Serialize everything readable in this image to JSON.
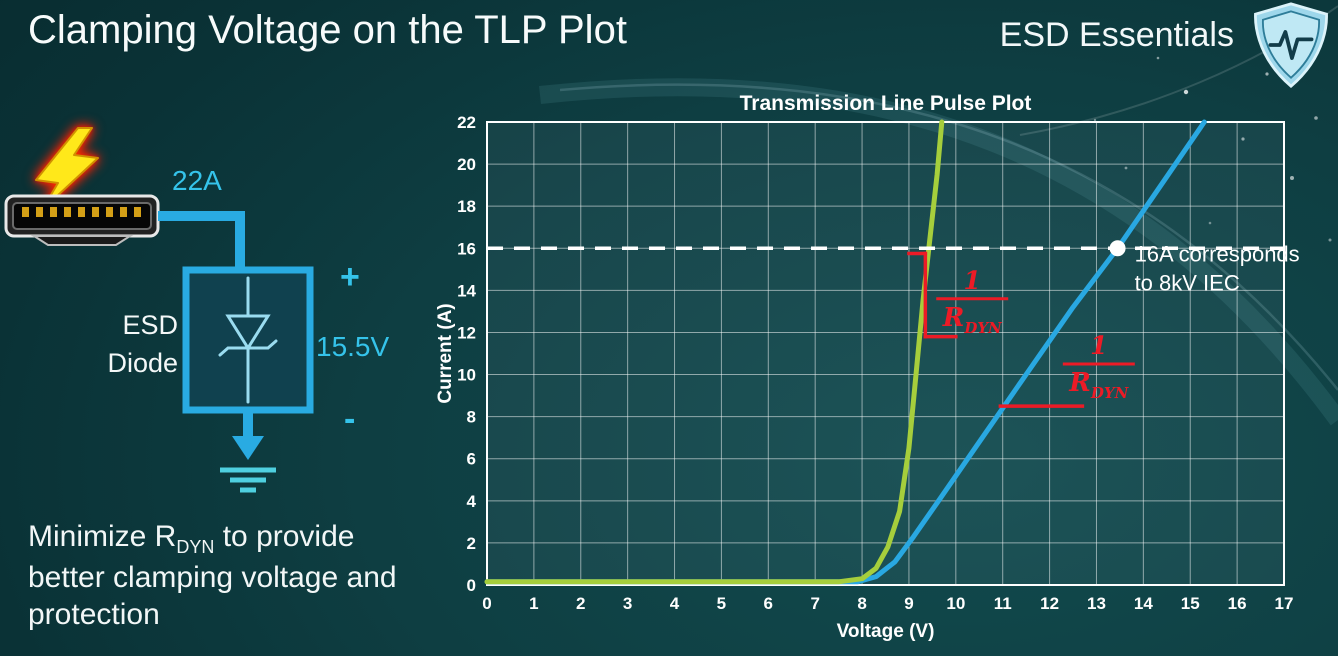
{
  "slide": {
    "title": "Clamping Voltage on the TLP Plot",
    "brand": "ESD Essentials"
  },
  "colors": {
    "accent_cyan": "#29abe2",
    "curve_green": "#a6ce3c",
    "curve_blue": "#29a8e2",
    "annotation_red": "#ec1b26",
    "background_teal": "#0e3e42"
  },
  "diagram": {
    "surge_current": "22A",
    "esd_label_line1": "ESD",
    "esd_label_line2": "Diode",
    "plus": "+",
    "clamp_voltage": "15.5V",
    "minus": "-"
  },
  "footnote": {
    "part1": "Minimize R",
    "sub": "DYN",
    "part2": " to provide better clamping voltage and protection"
  },
  "chart_data": {
    "type": "line",
    "title": "Transmission Line Pulse Plot",
    "xlabel": "Voltage (V)",
    "ylabel": "Current (A)",
    "xlim": [
      0,
      17
    ],
    "ylim": [
      0,
      22
    ],
    "xticks": [
      0,
      1,
      2,
      3,
      4,
      5,
      6,
      7,
      8,
      9,
      10,
      11,
      12,
      13,
      14,
      15,
      16,
      17
    ],
    "yticks": [
      0,
      2,
      4,
      6,
      8,
      10,
      12,
      14,
      16,
      18,
      20,
      22
    ],
    "grid": true,
    "legend": "none",
    "series": [
      {
        "id": "blue",
        "color": "#29a8e2",
        "points": [
          [
            0,
            0.15
          ],
          [
            7.9,
            0.15
          ],
          [
            8.3,
            0.4
          ],
          [
            8.7,
            1.1
          ],
          [
            9.1,
            2.3
          ],
          [
            9.6,
            3.9
          ],
          [
            10.5,
            6.8
          ],
          [
            11.5,
            10.0
          ],
          [
            12.5,
            13.2
          ],
          [
            13.45,
            16.0
          ],
          [
            14.5,
            19.4
          ],
          [
            15.3,
            22
          ]
        ]
      },
      {
        "id": "green",
        "color": "#a6ce3c",
        "points": [
          [
            0,
            0.15
          ],
          [
            7.5,
            0.15
          ],
          [
            8.0,
            0.3
          ],
          [
            8.3,
            0.8
          ],
          [
            8.55,
            1.8
          ],
          [
            8.8,
            3.5
          ],
          [
            9.0,
            6.5
          ],
          [
            9.15,
            10.0
          ],
          [
            9.3,
            13.5
          ],
          [
            9.45,
            16.5
          ],
          [
            9.6,
            19.5
          ],
          [
            9.7,
            22
          ]
        ]
      }
    ],
    "reference_line": {
      "y": 16,
      "color": "#ffffff",
      "dash": true
    },
    "marker": {
      "x": 13.45,
      "y": 16,
      "label_lines": [
        "16A corresponds",
        "to 8kV IEC"
      ]
    },
    "annotation_color": "#ec1b26",
    "rdyn_fraction": {
      "numerator": "1",
      "denominator_main": "R",
      "denominator_sub": "DYN"
    },
    "annotations": [
      {
        "segments": [
          [
            9.35,
            11.8,
            9.35,
            15.75
          ],
          [
            9.0,
            15.75,
            9.35,
            15.75
          ],
          [
            9.35,
            11.8,
            10.0,
            11.8
          ]
        ],
        "fraction": {
          "x": 10.35,
          "y": 13.6
        }
      },
      {
        "segments": [
          [
            10.95,
            8.5,
            12.7,
            8.5
          ]
        ],
        "fraction": {
          "x": 13.05,
          "y": 10.5
        }
      }
    ]
  }
}
